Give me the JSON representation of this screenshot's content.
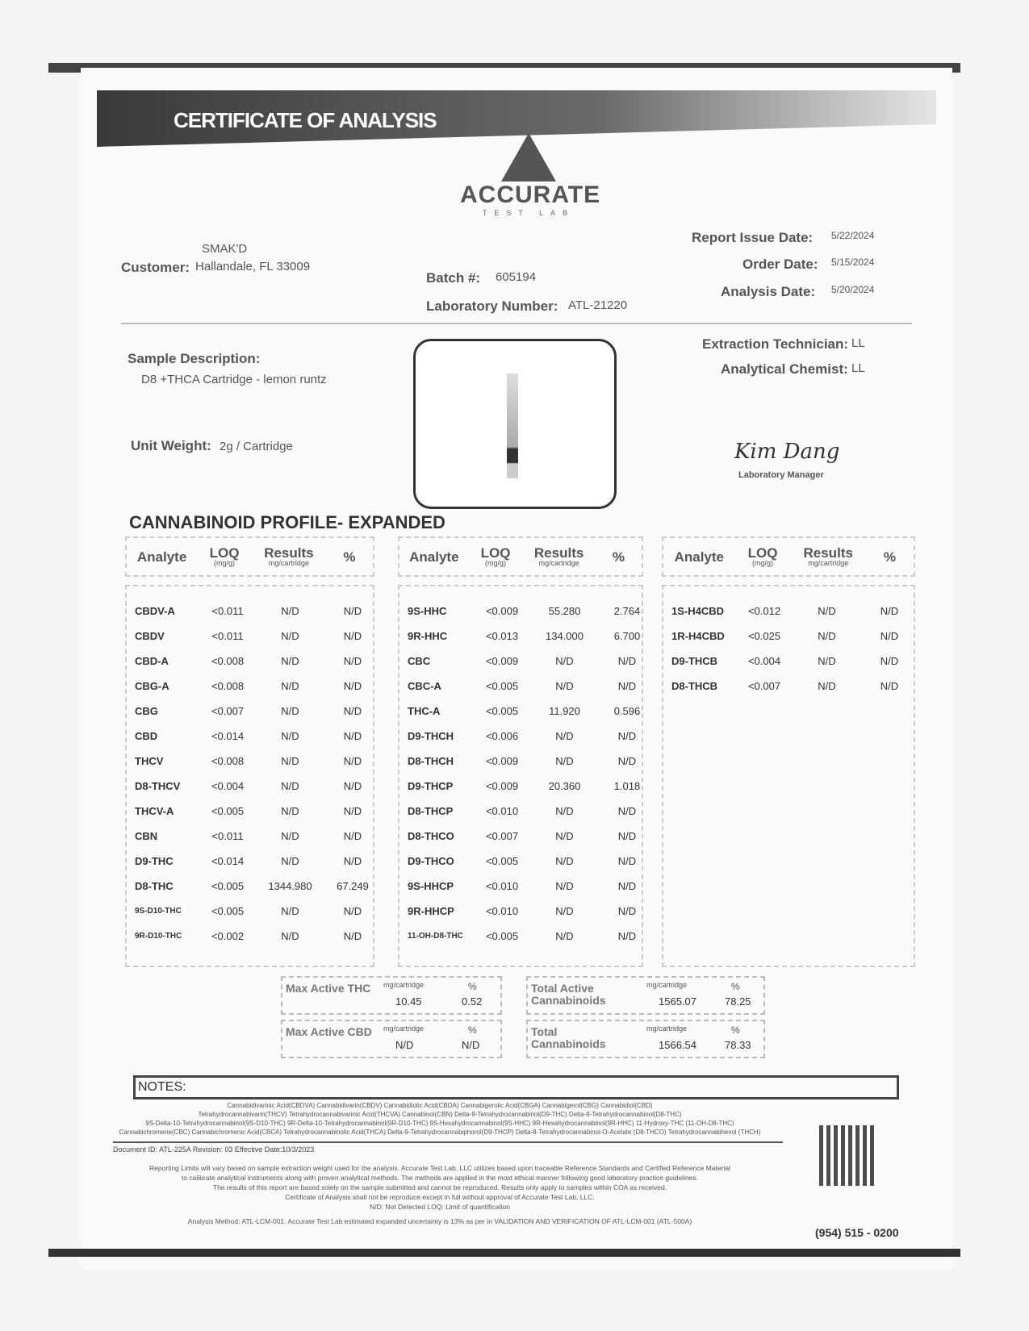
{
  "header": {
    "title": "CERTIFICATE OF ANALYSIS",
    "logo_name": "ACCURATE",
    "logo_sub": "TEST LAB"
  },
  "customer": {
    "label": "Customer:",
    "name": "SMAK'D",
    "address": "Hallandale, FL 33009"
  },
  "batch": {
    "label": "Batch #:",
    "value": "605194"
  },
  "lab_number": {
    "label": "Laboratory Number:",
    "value": "ATL-21220"
  },
  "dates": {
    "report_label": "Report Issue Date:",
    "report": "5/22/2024",
    "order_label": "Order Date:",
    "order": "5/15/2024",
    "analysis_label": "Analysis Date:",
    "analysis": "5/20/2024"
  },
  "staff": {
    "extraction_label": "Extraction Technician:",
    "extraction": "LL",
    "chemist_label": "Analytical Chemist:",
    "chemist": "LL",
    "signature": "Kim Dang",
    "manager_label": "Laboratory Manager"
  },
  "sample": {
    "label": "Sample Description:",
    "value": "D8 +THCA Cartridge - lemon runtz",
    "unit_label": "Unit Weight:",
    "unit": "2g / Cartridge"
  },
  "profile_title": "CANNABINOID PROFILE- EXPANDED",
  "columns": {
    "analyte": "Analyte",
    "loq": "LOQ",
    "loq_unit": "(mg/g)",
    "results": "Results",
    "results_unit": "mg/cartridge",
    "pct": "%"
  },
  "tables": [
    [
      [
        "CBDV-A",
        "<0.011",
        "N/D",
        "N/D"
      ],
      [
        "CBDV",
        "<0.011",
        "N/D",
        "N/D"
      ],
      [
        "CBD-A",
        "<0.008",
        "N/D",
        "N/D"
      ],
      [
        "CBG-A",
        "<0.008",
        "N/D",
        "N/D"
      ],
      [
        "CBG",
        "<0.007",
        "N/D",
        "N/D"
      ],
      [
        "CBD",
        "<0.014",
        "N/D",
        "N/D"
      ],
      [
        "THCV",
        "<0.008",
        "N/D",
        "N/D"
      ],
      [
        "D8-THCV",
        "<0.004",
        "N/D",
        "N/D"
      ],
      [
        "THCV-A",
        "<0.005",
        "N/D",
        "N/D"
      ],
      [
        "CBN",
        "<0.011",
        "N/D",
        "N/D"
      ],
      [
        "D9-THC",
        "<0.014",
        "N/D",
        "N/D"
      ],
      [
        "D8-THC",
        "<0.005",
        "1344.980",
        "67.249"
      ],
      [
        "9S-D10-THC",
        "<0.005",
        "N/D",
        "N/D"
      ],
      [
        "9R-D10-THC",
        "<0.002",
        "N/D",
        "N/D"
      ]
    ],
    [
      [
        "9S-HHC",
        "<0.009",
        "55.280",
        "2.764"
      ],
      [
        "9R-HHC",
        "<0.013",
        "134.000",
        "6.700"
      ],
      [
        "CBC",
        "<0.009",
        "N/D",
        "N/D"
      ],
      [
        "CBC-A",
        "<0.005",
        "N/D",
        "N/D"
      ],
      [
        "THC-A",
        "<0.005",
        "11.920",
        "0.596"
      ],
      [
        "D9-THCH",
        "<0.006",
        "N/D",
        "N/D"
      ],
      [
        "D8-THCH",
        "<0.009",
        "N/D",
        "N/D"
      ],
      [
        "D9-THCP",
        "<0.009",
        "20.360",
        "1.018"
      ],
      [
        "D8-THCP",
        "<0.010",
        "N/D",
        "N/D"
      ],
      [
        "D8-THCO",
        "<0.007",
        "N/D",
        "N/D"
      ],
      [
        "D9-THCO",
        "<0.005",
        "N/D",
        "N/D"
      ],
      [
        "9S-HHCP",
        "<0.010",
        "N/D",
        "N/D"
      ],
      [
        "9R-HHCP",
        "<0.010",
        "N/D",
        "N/D"
      ],
      [
        "11-OH-D8-THC",
        "<0.005",
        "N/D",
        "N/D"
      ]
    ],
    [
      [
        "1S-H4CBD",
        "<0.012",
        "N/D",
        "N/D"
      ],
      [
        "1R-H4CBD",
        "<0.025",
        "N/D",
        "N/D"
      ],
      [
        "D9-THCB",
        "<0.004",
        "N/D",
        "N/D"
      ],
      [
        "D8-THCB",
        "<0.007",
        "N/D",
        "N/D"
      ]
    ]
  ],
  "summary": {
    "max_thc": {
      "label": "Max Active THC",
      "mg": "10.45",
      "pct": "0.52"
    },
    "max_cbd": {
      "label": "Max Active CBD",
      "mg": "N/D",
      "pct": "N/D"
    },
    "total_active": {
      "label": "Total Active Cannabinoids",
      "mg": "1565.07",
      "pct": "78.25"
    },
    "total": {
      "label": "Total Cannabinoids",
      "mg": "1566.54",
      "pct": "78.33"
    },
    "unit": "mg/cartridge",
    "pct_label": "%"
  },
  "notes_label": "NOTES:",
  "glossary": [
    "Cannabidivarinic Acid(CBDVA) Cannabidivarin(CBDV) Cannabidiolic Acid(CBDA) Cannabigerolic Acid(CBGA) Cannabigerol(CBG) Cannabidiol(CBD)",
    "Tetrahydrocannabivarin(THCV) Tetrahydrocannabivarinic Acid(THCVA) Cannabinol(CBN) Delta-9-Tetrahydrocannabinol(D9-THC) Delta-8-Tetrahydrocannabinol(D8-THC)",
    "9S-Delta-10-Tetrahydrocannabinol(9S-D10-THC) 9R-Delta-10-Tetrahydrocannabinol(9R-D10-THC) 9S-Hexahydrocannabinol(9S-HHC) 9R-Hexahydrocannabinol(9R-HHC) 11-Hydroxy-THC (11-OH-D8-THC)",
    "Cannabichromene(CBC) Cannabichromenic Acid(CBCA) Tetrahydrocannabinolic Acid(THCA) Delta-9-Tetrahydrocannabiphorol(D9-THCP) Delta-8-Tetrahydrocannabinol-O-Acetate (D8-THCO) Tetrahydrocannabihexol (THCH)"
  ],
  "document_id": "Document ID: ATL-225A   Revision: 03   Effective Date:10/3/2023",
  "disclaimer": [
    "Reporting Limits will vary based on sample extraction weight used for the analysis. Accurate Test Lab, LLC utilizes based upon traceable Reference Standards and Certified Reference Material",
    "to calibrate analytical instruments along with proven analytical methods. The methods are applied in the most ethical manner following good laboratory practice guidelines.",
    "The results of this report are based solely on the sample submitted and cannot be reproduced. Results only apply to samples within COA as received.",
    "Certificate of Analysis shall not be reproduce except in full without approval of Accurate Test Lab, LLC.",
    "N/D: Not Detected  LOQ: Limit of quantification",
    "Analysis Method: ATL-LCM-001.   Accurate Test Lab estimated expanded uncertainty is 13% as per in VALIDATION AND VERIFICATION OF ATL-LCM-001 (ATL-500A)"
  ],
  "phone": "(954) 515 - 0200"
}
